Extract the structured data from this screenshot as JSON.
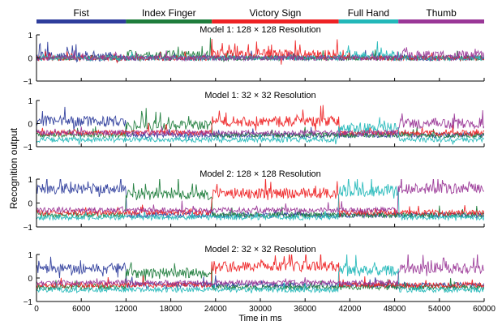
{
  "colors": {
    "Fist": "#2e3d9c",
    "Index Finger": "#1f7d3c",
    "Victory Sign": "#ee2224",
    "Full Hand": "#23b8b9",
    "Thumb": "#9a3797",
    "axis": "#000000",
    "background": "#ffffff"
  },
  "chart_data": {
    "type": "line",
    "ylabel": "Recognition output",
    "xlabel": "Time in ms",
    "xlim": [
      0,
      60000
    ],
    "ylim": [
      -1,
      1
    ],
    "x_ticks": [
      0,
      6000,
      12000,
      18000,
      24000,
      30000,
      36000,
      42000,
      48000,
      54000,
      60000
    ],
    "y_ticks": [
      -1,
      0,
      1
    ],
    "grid": false,
    "legend_placement": "top",
    "legend": [
      {
        "name": "Fist",
        "x_start": 0,
        "x_end": 12000
      },
      {
        "name": "Index Finger",
        "x_start": 12000,
        "x_end": 23500
      },
      {
        "name": "Victory Sign",
        "x_start": 23500,
        "x_end": 40500
      },
      {
        "name": "Full Hand",
        "x_start": 40500,
        "x_end": 48500
      },
      {
        "name": "Thumb",
        "x_start": 48500,
        "x_end": 60000
      }
    ],
    "panels": [
      {
        "title": "Model 1: 128 × 128 Resolution",
        "series": [
          {
            "name": "Fist",
            "baseline": 0.0,
            "active": 0.05
          },
          {
            "name": "Index Finger",
            "baseline": 0.0,
            "active": 0.1
          },
          {
            "name": "Victory Sign",
            "baseline": 0.0,
            "active": 0.15
          },
          {
            "name": "Full Hand",
            "baseline": 0.0,
            "active": 0.1
          },
          {
            "name": "Thumb",
            "baseline": 0.0,
            "active": 0.1
          }
        ]
      },
      {
        "title": "Model 1: 32 × 32 Resolution",
        "series": [
          {
            "name": "Fist",
            "baseline": -0.5,
            "active": 0.1
          },
          {
            "name": "Index Finger",
            "baseline": -0.5,
            "active": -0.1
          },
          {
            "name": "Victory Sign",
            "baseline": -0.4,
            "active": 0.1
          },
          {
            "name": "Full Hand",
            "baseline": -0.7,
            "active": -0.2
          },
          {
            "name": "Thumb",
            "baseline": -0.4,
            "active": 0.0
          }
        ]
      },
      {
        "title": "Model 2: 128 × 128 Resolution",
        "series": [
          {
            "name": "Fist",
            "baseline": -0.5,
            "active": 0.6
          },
          {
            "name": "Index Finger",
            "baseline": -0.5,
            "active": 0.35
          },
          {
            "name": "Victory Sign",
            "baseline": -0.4,
            "active": 0.4
          },
          {
            "name": "Full Hand",
            "baseline": -0.6,
            "active": 0.5
          },
          {
            "name": "Thumb",
            "baseline": -0.3,
            "active": 0.6
          }
        ]
      },
      {
        "title": "Model 2: 32 × 32 Resolution",
        "series": [
          {
            "name": "Fist",
            "baseline": -0.3,
            "active": 0.4
          },
          {
            "name": "Index Finger",
            "baseline": -0.4,
            "active": 0.2
          },
          {
            "name": "Victory Sign",
            "baseline": -0.3,
            "active": 0.5
          },
          {
            "name": "Full Hand",
            "baseline": -0.5,
            "active": 0.3
          },
          {
            "name": "Thumb",
            "baseline": -0.2,
            "active": 0.4
          }
        ]
      }
    ]
  }
}
